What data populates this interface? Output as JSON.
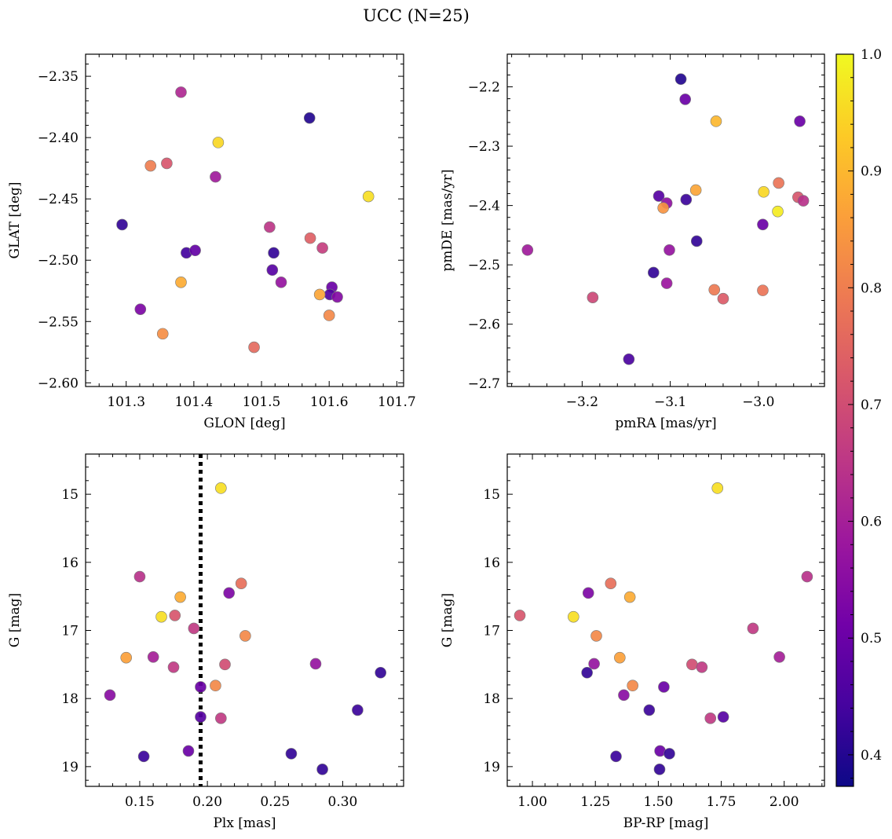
{
  "figure": {
    "title": "UCC (N=25)"
  },
  "colormap": {
    "name": "plasma",
    "range": [
      0.373,
      1.0
    ],
    "ticks": [
      0.4,
      0.5,
      0.6,
      0.7,
      0.8,
      0.9,
      1.0
    ],
    "tick_labels": [
      "0.4",
      "0.5",
      "0.6",
      "0.7",
      "0.8",
      "0.9",
      "1.0"
    ],
    "stops": [
      "#0d0887",
      "#46039f",
      "#7201a8",
      "#9c179e",
      "#bd3786",
      "#d8576b",
      "#ed7953",
      "#fb9f3a",
      "#fdca26",
      "#f0f921"
    ]
  },
  "chart_data": [
    {
      "id": "glon-glat",
      "type": "scatter",
      "xlabel": "GLON [deg]",
      "ylabel": "GLAT [deg]",
      "xlim": [
        101.24,
        101.71
      ],
      "ylim": [
        -2.603,
        -2.332
      ],
      "y_inverted": false,
      "xticks": [
        101.3,
        101.4,
        101.5,
        101.6,
        101.7
      ],
      "xtick_labels": [
        "101.3",
        "101.4",
        "101.5",
        "101.6",
        "101.7"
      ],
      "yticks": [
        -2.6,
        -2.55,
        -2.5,
        -2.45,
        -2.4,
        -2.35
      ],
      "ytick_labels": [
        "−2.60",
        "−2.55",
        "−2.50",
        "−2.45",
        "−2.40",
        "−2.35"
      ],
      "points": [
        {
          "x": 101.381,
          "y": -2.363,
          "c": 0.62
        },
        {
          "x": 101.571,
          "y": -2.384,
          "c": 0.4
        },
        {
          "x": 101.436,
          "y": -2.404,
          "c": 0.95
        },
        {
          "x": 101.336,
          "y": -2.423,
          "c": 0.8
        },
        {
          "x": 101.36,
          "y": -2.421,
          "c": 0.72
        },
        {
          "x": 101.432,
          "y": -2.432,
          "c": 0.59
        },
        {
          "x": 101.658,
          "y": -2.448,
          "c": 0.96
        },
        {
          "x": 101.294,
          "y": -2.471,
          "c": 0.42
        },
        {
          "x": 101.512,
          "y": -2.473,
          "c": 0.65
        },
        {
          "x": 101.572,
          "y": -2.482,
          "c": 0.74
        },
        {
          "x": 101.59,
          "y": -2.49,
          "c": 0.67
        },
        {
          "x": 101.389,
          "y": -2.494,
          "c": 0.44
        },
        {
          "x": 101.402,
          "y": -2.492,
          "c": 0.49
        },
        {
          "x": 101.518,
          "y": -2.494,
          "c": 0.42
        },
        {
          "x": 101.516,
          "y": -2.508,
          "c": 0.47
        },
        {
          "x": 101.381,
          "y": -2.518,
          "c": 0.88
        },
        {
          "x": 101.529,
          "y": -2.518,
          "c": 0.57
        },
        {
          "x": 101.604,
          "y": -2.522,
          "c": 0.5
        },
        {
          "x": 101.601,
          "y": -2.528,
          "c": 0.46
        },
        {
          "x": 101.586,
          "y": -2.528,
          "c": 0.87
        },
        {
          "x": 101.612,
          "y": -2.53,
          "c": 0.54
        },
        {
          "x": 101.321,
          "y": -2.54,
          "c": 0.53
        },
        {
          "x": 101.6,
          "y": -2.545,
          "c": 0.82
        },
        {
          "x": 101.354,
          "y": -2.56,
          "c": 0.83
        },
        {
          "x": 101.489,
          "y": -2.571,
          "c": 0.76
        }
      ]
    },
    {
      "id": "pmra-pmde",
      "type": "scatter",
      "xlabel": "pmRA [mas/yr]",
      "ylabel": "pmDE [mas/yr]",
      "xlim": [
        -3.285,
        -2.925
      ],
      "ylim": [
        -2.705,
        -2.145
      ],
      "y_inverted": false,
      "xticks": [
        -3.2,
        -3.1,
        -3.0
      ],
      "xtick_labels": [
        "−3.2",
        "−3.1",
        "−3.0"
      ],
      "yticks": [
        -2.7,
        -2.6,
        -2.5,
        -2.4,
        -2.3,
        -2.2
      ],
      "ytick_labels": [
        "−2.7",
        "−2.6",
        "−2.5",
        "−2.4",
        "−2.3",
        "−2.2"
      ],
      "points": [
        {
          "x": -3.088,
          "y": -2.187,
          "c": 0.4
        },
        {
          "x": -3.083,
          "y": -2.221,
          "c": 0.5
        },
        {
          "x": -3.048,
          "y": -2.258,
          "c": 0.9
        },
        {
          "x": -2.953,
          "y": -2.258,
          "c": 0.5
        },
        {
          "x": -2.977,
          "y": -2.362,
          "c": 0.78
        },
        {
          "x": -3.071,
          "y": -2.374,
          "c": 0.87
        },
        {
          "x": -2.994,
          "y": -2.377,
          "c": 0.95
        },
        {
          "x": -3.113,
          "y": -2.384,
          "c": 0.47
        },
        {
          "x": -2.955,
          "y": -2.386,
          "c": 0.72
        },
        {
          "x": -3.082,
          "y": -2.39,
          "c": 0.43
        },
        {
          "x": -2.949,
          "y": -2.392,
          "c": 0.64
        },
        {
          "x": -3.104,
          "y": -2.396,
          "c": 0.56
        },
        {
          "x": -3.108,
          "y": -2.404,
          "c": 0.84
        },
        {
          "x": -2.978,
          "y": -2.41,
          "c": 0.98
        },
        {
          "x": -2.995,
          "y": -2.432,
          "c": 0.5
        },
        {
          "x": -3.07,
          "y": -2.46,
          "c": 0.42
        },
        {
          "x": -3.262,
          "y": -2.475,
          "c": 0.59
        },
        {
          "x": -3.101,
          "y": -2.475,
          "c": 0.57
        },
        {
          "x": -3.119,
          "y": -2.513,
          "c": 0.42
        },
        {
          "x": -3.104,
          "y": -2.531,
          "c": 0.58
        },
        {
          "x": -3.05,
          "y": -2.542,
          "c": 0.79
        },
        {
          "x": -2.995,
          "y": -2.543,
          "c": 0.78
        },
        {
          "x": -3.188,
          "y": -2.555,
          "c": 0.69
        },
        {
          "x": -3.04,
          "y": -2.557,
          "c": 0.73
        },
        {
          "x": -3.147,
          "y": -2.659,
          "c": 0.45
        }
      ]
    },
    {
      "id": "plx-g",
      "type": "scatter",
      "xlabel": "Plx [mas]",
      "ylabel": "G [mag]",
      "xlim": [
        0.11,
        0.345
      ],
      "ylim": [
        14.41,
        19.29
      ],
      "y_inverted": true,
      "vline": 0.195,
      "xticks": [
        0.15,
        0.2,
        0.25,
        0.3
      ],
      "xtick_labels": [
        "0.15",
        "0.20",
        "0.25",
        "0.30"
      ],
      "yticks": [
        15,
        16,
        17,
        18,
        19
      ],
      "ytick_labels": [
        "15",
        "16",
        "17",
        "18",
        "19"
      ],
      "points": [
        {
          "x": 0.21,
          "y": 14.91,
          "c": 0.96
        },
        {
          "x": 0.15,
          "y": 16.21,
          "c": 0.64
        },
        {
          "x": 0.225,
          "y": 16.31,
          "c": 0.77
        },
        {
          "x": 0.216,
          "y": 16.45,
          "c": 0.53
        },
        {
          "x": 0.18,
          "y": 16.51,
          "c": 0.88
        },
        {
          "x": 0.176,
          "y": 16.78,
          "c": 0.72
        },
        {
          "x": 0.166,
          "y": 16.8,
          "c": 0.96
        },
        {
          "x": 0.19,
          "y": 16.97,
          "c": 0.66
        },
        {
          "x": 0.228,
          "y": 17.08,
          "c": 0.82
        },
        {
          "x": 0.14,
          "y": 17.4,
          "c": 0.86
        },
        {
          "x": 0.16,
          "y": 17.39,
          "c": 0.6
        },
        {
          "x": 0.28,
          "y": 17.49,
          "c": 0.57
        },
        {
          "x": 0.213,
          "y": 17.5,
          "c": 0.7
        },
        {
          "x": 0.175,
          "y": 17.54,
          "c": 0.66
        },
        {
          "x": 0.328,
          "y": 17.62,
          "c": 0.42
        },
        {
          "x": 0.206,
          "y": 17.81,
          "c": 0.82
        },
        {
          "x": 0.195,
          "y": 17.83,
          "c": 0.5
        },
        {
          "x": 0.128,
          "y": 17.95,
          "c": 0.55
        },
        {
          "x": 0.311,
          "y": 18.17,
          "c": 0.43
        },
        {
          "x": 0.195,
          "y": 18.27,
          "c": 0.47
        },
        {
          "x": 0.21,
          "y": 18.29,
          "c": 0.66
        },
        {
          "x": 0.186,
          "y": 18.77,
          "c": 0.5
        },
        {
          "x": 0.262,
          "y": 18.81,
          "c": 0.42
        },
        {
          "x": 0.153,
          "y": 18.85,
          "c": 0.43
        },
        {
          "x": 0.285,
          "y": 19.04,
          "c": 0.42
        }
      ]
    },
    {
      "id": "bprp-g",
      "type": "scatter",
      "xlabel": "BP-RP [mag]",
      "ylabel": "G [mag]",
      "xlim": [
        0.9,
        2.16
      ],
      "ylim": [
        14.41,
        19.29
      ],
      "y_inverted": true,
      "xticks": [
        1.0,
        1.25,
        1.5,
        1.75,
        2.0
      ],
      "xtick_labels": [
        "1.00",
        "1.25",
        "1.50",
        "1.75",
        "2.00"
      ],
      "yticks": [
        15,
        16,
        17,
        18,
        19
      ],
      "ytick_labels": [
        "15",
        "16",
        "17",
        "18",
        "19"
      ],
      "points": [
        {
          "x": 1.735,
          "y": 14.91,
          "c": 0.96
        },
        {
          "x": 2.091,
          "y": 16.21,
          "c": 0.64
        },
        {
          "x": 1.311,
          "y": 16.31,
          "c": 0.77
        },
        {
          "x": 1.222,
          "y": 16.45,
          "c": 0.53
        },
        {
          "x": 1.387,
          "y": 16.51,
          "c": 0.88
        },
        {
          "x": 0.95,
          "y": 16.78,
          "c": 0.72
        },
        {
          "x": 1.163,
          "y": 16.8,
          "c": 0.96
        },
        {
          "x": 1.876,
          "y": 16.97,
          "c": 0.66
        },
        {
          "x": 1.254,
          "y": 17.08,
          "c": 0.82
        },
        {
          "x": 1.347,
          "y": 17.4,
          "c": 0.86
        },
        {
          "x": 1.981,
          "y": 17.39,
          "c": 0.6
        },
        {
          "x": 1.245,
          "y": 17.49,
          "c": 0.57
        },
        {
          "x": 1.634,
          "y": 17.5,
          "c": 0.7
        },
        {
          "x": 1.673,
          "y": 17.54,
          "c": 0.66
        },
        {
          "x": 1.217,
          "y": 17.62,
          "c": 0.42
        },
        {
          "x": 1.398,
          "y": 17.81,
          "c": 0.82
        },
        {
          "x": 1.522,
          "y": 17.83,
          "c": 0.5
        },
        {
          "x": 1.363,
          "y": 17.95,
          "c": 0.55
        },
        {
          "x": 1.464,
          "y": 18.17,
          "c": 0.43
        },
        {
          "x": 1.758,
          "y": 18.27,
          "c": 0.47
        },
        {
          "x": 1.707,
          "y": 18.29,
          "c": 0.66
        },
        {
          "x": 1.507,
          "y": 18.77,
          "c": 0.5
        },
        {
          "x": 1.544,
          "y": 18.81,
          "c": 0.42
        },
        {
          "x": 1.332,
          "y": 18.85,
          "c": 0.43
        },
        {
          "x": 1.505,
          "y": 19.04,
          "c": 0.42
        }
      ]
    }
  ]
}
